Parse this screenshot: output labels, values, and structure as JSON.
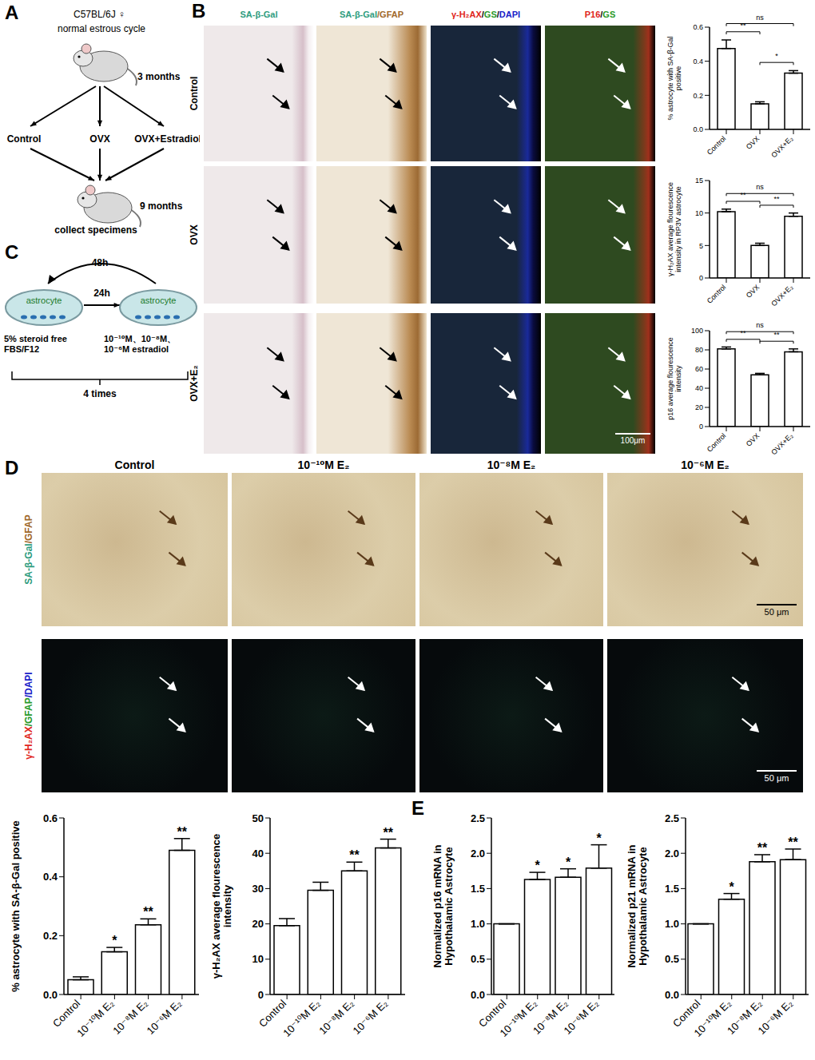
{
  "panels": {
    "A": {
      "label": "A",
      "strain": "C57BL/6J ♀",
      "cycle": "normal estrous cycle",
      "start_age": "3 months",
      "groups": [
        "Control",
        "OVX",
        "OVX+Estradiol"
      ],
      "end_age": "9 months",
      "end_step": "collect specimens"
    },
    "B": {
      "label": "B",
      "columns": [
        [
          {
            "text": "SA-β-Gal",
            "color": "#2e9c7e"
          }
        ],
        [
          {
            "text": "SA-β-Gal",
            "color": "#2e9c7e"
          },
          {
            "text": "/GFAP",
            "color": "#a0682a"
          }
        ],
        [
          {
            "text": "γ-H₂AX",
            "color": "#e0251b"
          },
          {
            "text": "/",
            "color": "#000000"
          },
          {
            "text": "GS",
            "color": "#2a9a2a"
          },
          {
            "text": "/",
            "color": "#000000"
          },
          {
            "text": "DAPI",
            "color": "#1a22c8"
          }
        ],
        [
          {
            "text": "P16",
            "color": "#e0251b"
          },
          {
            "text": "/",
            "color": "#000000"
          },
          {
            "text": "GS",
            "color": "#2a9a2a"
          }
        ]
      ],
      "rows": [
        "Control",
        "OVX",
        "OVX+E₂"
      ],
      "scale_bar": "100μm"
    },
    "C": {
      "label": "C",
      "interval_back": "48h",
      "interval_forward": "24h",
      "dish": "astrocyte",
      "medium": "5% steroid free FBS/F12",
      "treatment": "10⁻¹⁰M、10⁻⁸M、10⁻⁶M estradiol",
      "repeat": "4 times"
    },
    "D": {
      "label": "D",
      "columns": [
        "Control",
        "10⁻¹⁰M E₂",
        "10⁻⁸M E₂",
        "10⁻⁶M E₂"
      ],
      "rows": [
        [
          {
            "text": "SA-β-Gal",
            "color": "#2e9c7e"
          },
          {
            "text": "/GFAP",
            "color": "#a0682a"
          }
        ],
        [
          {
            "text": "γ-H₂AX",
            "color": "#e0251b"
          },
          {
            "text": "/GFAP",
            "color": "#2a9a2a"
          },
          {
            "text": "/DAPI",
            "color": "#1a22c8"
          }
        ]
      ],
      "scale_bar": "50 μm"
    },
    "E": {
      "label": "E"
    }
  },
  "chart_data": [
    {
      "type": "bar",
      "y_label": "% astrocyte with SA-β-Gal positive",
      "categories": [
        "Control",
        "OVX",
        "OVX+E₂"
      ],
      "values": [
        0.475,
        0.15,
        0.33
      ],
      "errors": [
        0.05,
        0.012,
        0.015
      ],
      "ylim": [
        0,
        0.6
      ],
      "yticks": [
        {
          "value": 0,
          "label": "0.0"
        },
        {
          "value": 0.2,
          "label": "0.2"
        },
        {
          "value": 0.4,
          "label": "0.4"
        },
        {
          "value": 0.6,
          "label": "0.6"
        }
      ],
      "color": "#ffffff",
      "annotations": [
        {
          "between": [
            "Control",
            "OVX"
          ],
          "text": "**"
        },
        {
          "between": [
            "OVX",
            "OVX+E₂"
          ],
          "text": "*"
        },
        {
          "between": [
            "Control",
            "OVX+E₂"
          ],
          "text": "ns"
        }
      ]
    },
    {
      "type": "bar",
      "y_label": "γ-H₂AX average flourescence intensity in RP3V astrocyte",
      "categories": [
        "Control",
        "OVX",
        "OVX+E₂"
      ],
      "values": [
        10.2,
        5.0,
        9.5
      ],
      "errors": [
        0.4,
        0.35,
        0.5
      ],
      "ylim": [
        0,
        15
      ],
      "yticks": [
        0,
        5,
        10,
        15
      ],
      "color": "#ffffff",
      "annotations": [
        {
          "between": [
            "Control",
            "OVX"
          ],
          "text": "**"
        },
        {
          "between": [
            "OVX",
            "OVX+E₂"
          ],
          "text": "**"
        },
        {
          "between": [
            "Control",
            "OVX+E₂"
          ],
          "text": "ns"
        }
      ]
    },
    {
      "type": "bar",
      "y_label": "p16 average flourescence intensity",
      "categories": [
        "Control",
        "OVX",
        "OVX+E₂"
      ],
      "values": [
        81,
        54,
        78
      ],
      "errors": [
        2,
        1.5,
        3
      ],
      "ylim": [
        0,
        100
      ],
      "yticks": [
        0,
        20,
        40,
        60,
        80,
        100
      ],
      "color": "#ffffff",
      "annotations": [
        {
          "between": [
            "Control",
            "OVX"
          ],
          "text": "**"
        },
        {
          "between": [
            "OVX",
            "OVX+E₂"
          ],
          "text": "**"
        },
        {
          "between": [
            "Control",
            "OVX+E₂"
          ],
          "text": "ns"
        }
      ]
    },
    {
      "type": "bar",
      "y_label": "% astrocyte with SA-β-Gal positive",
      "categories": [
        "Control",
        "10⁻¹⁰M E₂",
        "10⁻⁸M E₂",
        "10⁻⁶M E₂"
      ],
      "values": [
        0.05,
        0.145,
        0.237,
        0.49
      ],
      "errors": [
        0.01,
        0.015,
        0.02,
        0.04
      ],
      "ylim": [
        0,
        0.6
      ],
      "yticks": [
        {
          "value": 0,
          "label": "0.0"
        },
        {
          "value": 0.2,
          "label": "0.2"
        },
        {
          "value": 0.4,
          "label": "0.4"
        },
        {
          "value": 0.6,
          "label": "0.6"
        }
      ],
      "color": "#ffffff",
      "significance": [
        null,
        "*",
        "**",
        "**"
      ]
    },
    {
      "type": "bar",
      "y_label": "γ-H₂AX average flourescence intensity",
      "categories": [
        "Control",
        "10⁻¹⁰M E₂",
        "10⁻⁸M E₂",
        "10⁻⁶M E₂"
      ],
      "values": [
        19.5,
        29.5,
        35,
        41.5
      ],
      "errors": [
        2,
        2.3,
        2.5,
        2.5
      ],
      "ylim": [
        0,
        50
      ],
      "yticks": [
        0,
        10,
        20,
        30,
        40,
        50
      ],
      "color": "#ffffff",
      "significance": [
        null,
        null,
        "**",
        "**"
      ]
    },
    {
      "type": "bar",
      "y_label": "Normalized p16 mRNA in Hypothalamic Astrocyte",
      "categories": [
        "Control",
        "10⁻¹⁰M E₂",
        "10⁻⁸M E₂",
        "10⁻⁶M E₂"
      ],
      "values": [
        1.0,
        1.63,
        1.66,
        1.79
      ],
      "errors": [
        0,
        0.1,
        0.12,
        0.33
      ],
      "ylim": [
        0,
        2.5
      ],
      "yticks": [
        {
          "value": 0,
          "label": "0.0"
        },
        {
          "value": 0.5,
          "label": "0.5"
        },
        {
          "value": 1,
          "label": "1.0"
        },
        {
          "value": 1.5,
          "label": "1.5"
        },
        {
          "value": 2,
          "label": "2.0"
        },
        {
          "value": 2.5,
          "label": "2.5"
        }
      ],
      "color": "#ffffff",
      "significance": [
        null,
        "*",
        "*",
        "*"
      ]
    },
    {
      "type": "bar",
      "y_label": "Normalized p21 mRNA in Hypothalamic Astrocyte",
      "categories": [
        "Control",
        "10⁻¹⁰M E₂",
        "10⁻⁸M E₂",
        "10⁻⁶M E₂"
      ],
      "values": [
        1.0,
        1.35,
        1.88,
        1.91
      ],
      "errors": [
        0,
        0.08,
        0.1,
        0.15
      ],
      "ylim": [
        0,
        2.5
      ],
      "yticks": [
        {
          "value": 0,
          "label": "0.0"
        },
        {
          "value": 0.5,
          "label": "0.5"
        },
        {
          "value": 1,
          "label": "1.0"
        },
        {
          "value": 1.5,
          "label": "1.5"
        },
        {
          "value": 2,
          "label": "2.0"
        },
        {
          "value": 2.5,
          "label": "2.5"
        }
      ],
      "color": "#ffffff",
      "significance": [
        null,
        "*",
        "**",
        "**"
      ]
    }
  ]
}
